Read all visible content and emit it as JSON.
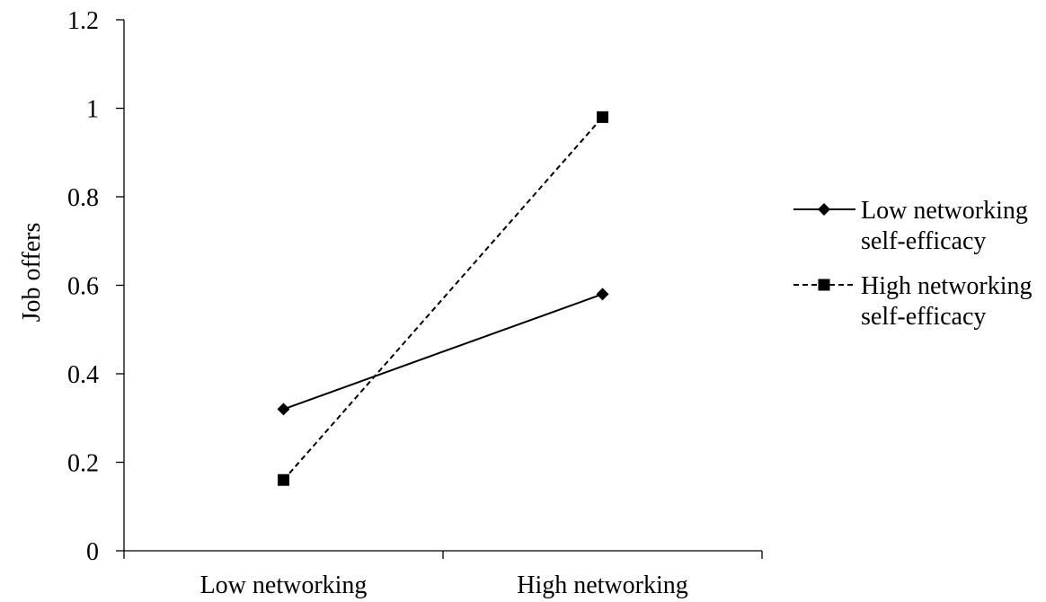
{
  "chart_data": {
    "type": "line",
    "title": "",
    "xlabel": "",
    "ylabel": "Job offers",
    "categories": [
      "Low networking",
      "High networking"
    ],
    "ylim": [
      0,
      1.2
    ],
    "yticks": [
      "0",
      "0.2",
      "0.4",
      "0.6",
      "0.8",
      "1",
      "1.2"
    ],
    "grid": false,
    "legend_position": "right",
    "series": [
      {
        "name_lines": [
          "Low networking",
          "self-efficacy"
        ],
        "values": [
          0.32,
          0.58
        ],
        "marker": "diamond",
        "line_style": "solid",
        "color": "#000000"
      },
      {
        "name_lines": [
          "High networking",
          "self-efficacy"
        ],
        "values": [
          0.16,
          0.98
        ],
        "marker": "square",
        "line_style": "dashed",
        "color": "#000000"
      }
    ]
  }
}
